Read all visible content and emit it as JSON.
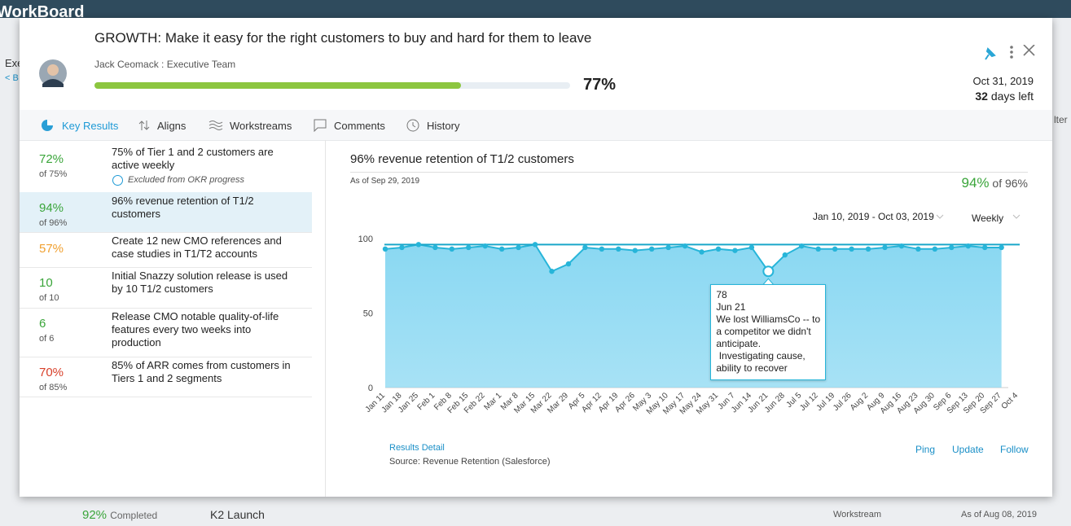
{
  "background": {
    "logo": "WorkBoard",
    "left_text_1": "Exe",
    "left_text_2": "< B",
    "right_text": "lter",
    "row_percent": "92%",
    "row_status": "Completed",
    "row_name": "K2 Launch",
    "row_type": "Workstream",
    "row_date": "As of Aug 08, 2019"
  },
  "header": {
    "title": "GROWTH: Make it easy for the right customers to buy and hard for them to leave",
    "owner": "Jack Ceomack : Executive Team",
    "progress": 77,
    "progress_label": "77%",
    "progress_color": "#8cc63f",
    "due_date": "Oct 31, 2019",
    "days_left": "32",
    "days_left_text": "days left"
  },
  "tabs": [
    "Key Results",
    "Aligns",
    "Workstreams",
    "Comments",
    "History"
  ],
  "key_results": [
    {
      "value": "72%",
      "of": "of 75%",
      "text": "75% of Tier 1 and 2 customers are active weekly",
      "note": "Excluded from OKR progress",
      "color": "#3aa53a"
    },
    {
      "value": "94%",
      "of": "of 96%",
      "text": "96% revenue retention of T1/2 customers",
      "color": "#3aa53a"
    },
    {
      "value": "57%",
      "text": "Create 12 new CMO references and case studies in T1/T2 accounts",
      "color": "#f0a030"
    },
    {
      "value": "10",
      "of": "of 10",
      "text": "Initial Snazzy solution release is used by 10 T1/2 customers",
      "color": "#3aa53a"
    },
    {
      "value": "6",
      "of": "of 6",
      "text": "Release CMO notable quality-of-life features every two weeks into production",
      "color": "#3aa53a"
    },
    {
      "value": "70%",
      "of": "of 85%",
      "text": "85% of ARR comes from customers in Tiers 1 and 2 segments",
      "color": "#d8402a"
    }
  ],
  "chart_data": {
    "type": "area",
    "title": "96% revenue retention of T1/2 customers",
    "as_of": "As of Sep 29, 2019",
    "current": "94%",
    "target_text": "of 96%",
    "date_range": "Jan 10, 2019 - Oct 03, 2019",
    "frequency": "Weekly",
    "categories": [
      "Jan 11",
      "Jan 18",
      "Jan 25",
      "Feb 1",
      "Feb 8",
      "Feb 15",
      "Feb 22",
      "Mar 1",
      "Mar 8",
      "Mar 15",
      "Mar 22",
      "Mar 29",
      "Apr 5",
      "Apr 12",
      "Apr 19",
      "Apr 26",
      "May 3",
      "May 10",
      "May 17",
      "May 24",
      "May 31",
      "Jun 7",
      "Jun 14",
      "Jun 21",
      "Jun 28",
      "Jul 5",
      "Jul 12",
      "Jul 19",
      "Jul 26",
      "Aug 2",
      "Aug 9",
      "Aug 16",
      "Aug 23",
      "Aug 30",
      "Sep 6",
      "Sep 13",
      "Sep 20",
      "Sep 27",
      "Oct 4"
    ],
    "values": [
      93,
      94,
      96,
      94,
      93,
      94,
      95,
      93,
      94,
      96,
      78,
      83,
      94,
      93,
      93,
      92,
      93,
      94,
      95,
      91,
      93,
      92,
      94,
      78,
      89,
      95,
      93,
      93,
      93,
      93,
      94,
      95,
      93,
      93,
      94,
      95,
      94,
      94,
      null
    ],
    "target": 96,
    "color": "#27b5d9",
    "fill": "#8ad8f2",
    "ylim": [
      0,
      100
    ],
    "yticks": [
      0,
      50,
      100
    ],
    "tooltip": {
      "value": 78,
      "date": "Jun 21",
      "text": "We lost WilliamsCo -- to a competitor we didn't anticipate.\n Investigating cause, ability to recover"
    },
    "link": "Results Detail",
    "source": "Source:  Revenue Retention (Salesforce)",
    "actions": [
      "Ping",
      "Update",
      "Follow"
    ]
  }
}
